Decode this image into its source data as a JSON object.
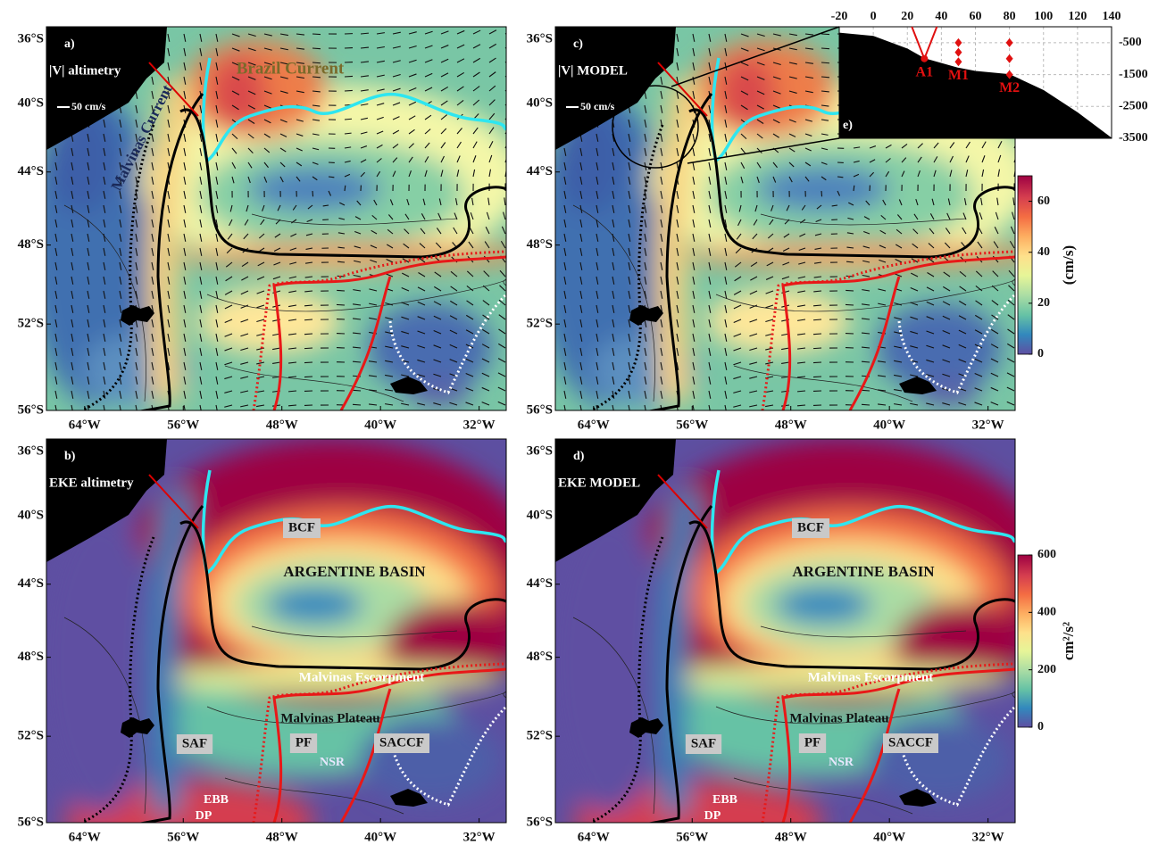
{
  "axes": {
    "lat": {
      "lim": [
        -56,
        -35.2
      ],
      "ticks": [
        {
          "value": -36,
          "label": "36°S"
        },
        {
          "value": -40,
          "label": "40°S"
        },
        {
          "value": -44,
          "label": "44°S"
        },
        {
          "value": -48,
          "label": "48°S"
        },
        {
          "value": -52,
          "label": "52°S"
        },
        {
          "value": -56,
          "label": "56°S"
        }
      ]
    },
    "lon": {
      "lim": [
        -67.1,
        -29.8
      ],
      "ticks": [
        {
          "value": -64,
          "label": "64°W"
        },
        {
          "value": -56,
          "label": "56°W"
        },
        {
          "value": -48,
          "label": "48°W"
        },
        {
          "value": -40,
          "label": "40°W"
        },
        {
          "value": -32,
          "label": "32°W"
        }
      ]
    }
  },
  "panels": [
    {
      "letter": "a)",
      "title": "|V| altimetry",
      "scale": "50 cm/s",
      "annotations": [
        "Brazil Current",
        "Malvinas Current"
      ]
    },
    {
      "letter": "b)",
      "title": "EKE altimetry",
      "annotations": [
        "BCF",
        "ARGENTINE BASIN",
        "Malvinas Escarpment",
        "Malvinas Plateau",
        "SAF",
        "PF",
        "SACCF",
        "NSR",
        "EBB",
        "DP"
      ]
    },
    {
      "letter": "c)",
      "title": "|V| MODEL",
      "scale": "50 cm/s",
      "annotations": []
    },
    {
      "letter": "d)",
      "title": "EKE MODEL",
      "annotations": [
        "BCF",
        "ARGENTINE BASIN",
        "Malvinas Escarpment",
        "Malvinas Plateau",
        "SAF",
        "PF",
        "SACCF",
        "NSR",
        "EBB",
        "DP"
      ]
    }
  ],
  "colorbars": [
    {
      "label": "(cm/s)",
      "lim": [
        0,
        70
      ],
      "ticks": [
        0,
        20,
        40,
        60
      ]
    },
    {
      "label": "cm²/s²",
      "lim": [
        0,
        600
      ],
      "ticks": [
        0,
        200,
        400,
        600
      ]
    }
  ],
  "inset": {
    "letter": "e)",
    "xlim": [
      -20,
      140
    ],
    "xticks": [
      -20,
      0,
      20,
      40,
      60,
      80,
      100,
      120,
      140
    ],
    "ylim": [
      -3500,
      0
    ],
    "yticks": [
      -500,
      -1500,
      -2500,
      -3500
    ],
    "bathymetry": {
      "x": [
        -20,
        0,
        20,
        30,
        50,
        60,
        80,
        100,
        120,
        140
      ],
      "depth": [
        -200,
        -300,
        -700,
        -1000,
        -1300,
        -1400,
        -1500,
        -2000,
        -2700,
        -3500
      ]
    },
    "moorings": [
      {
        "name": "A1",
        "x": 30,
        "depths": [
          -1000
        ]
      },
      {
        "name": "M1",
        "x": 50,
        "depths": [
          -500,
          -800,
          -1100
        ]
      },
      {
        "name": "M2",
        "x": 80,
        "depths": [
          -500,
          -1000,
          -1500
        ]
      }
    ]
  }
}
